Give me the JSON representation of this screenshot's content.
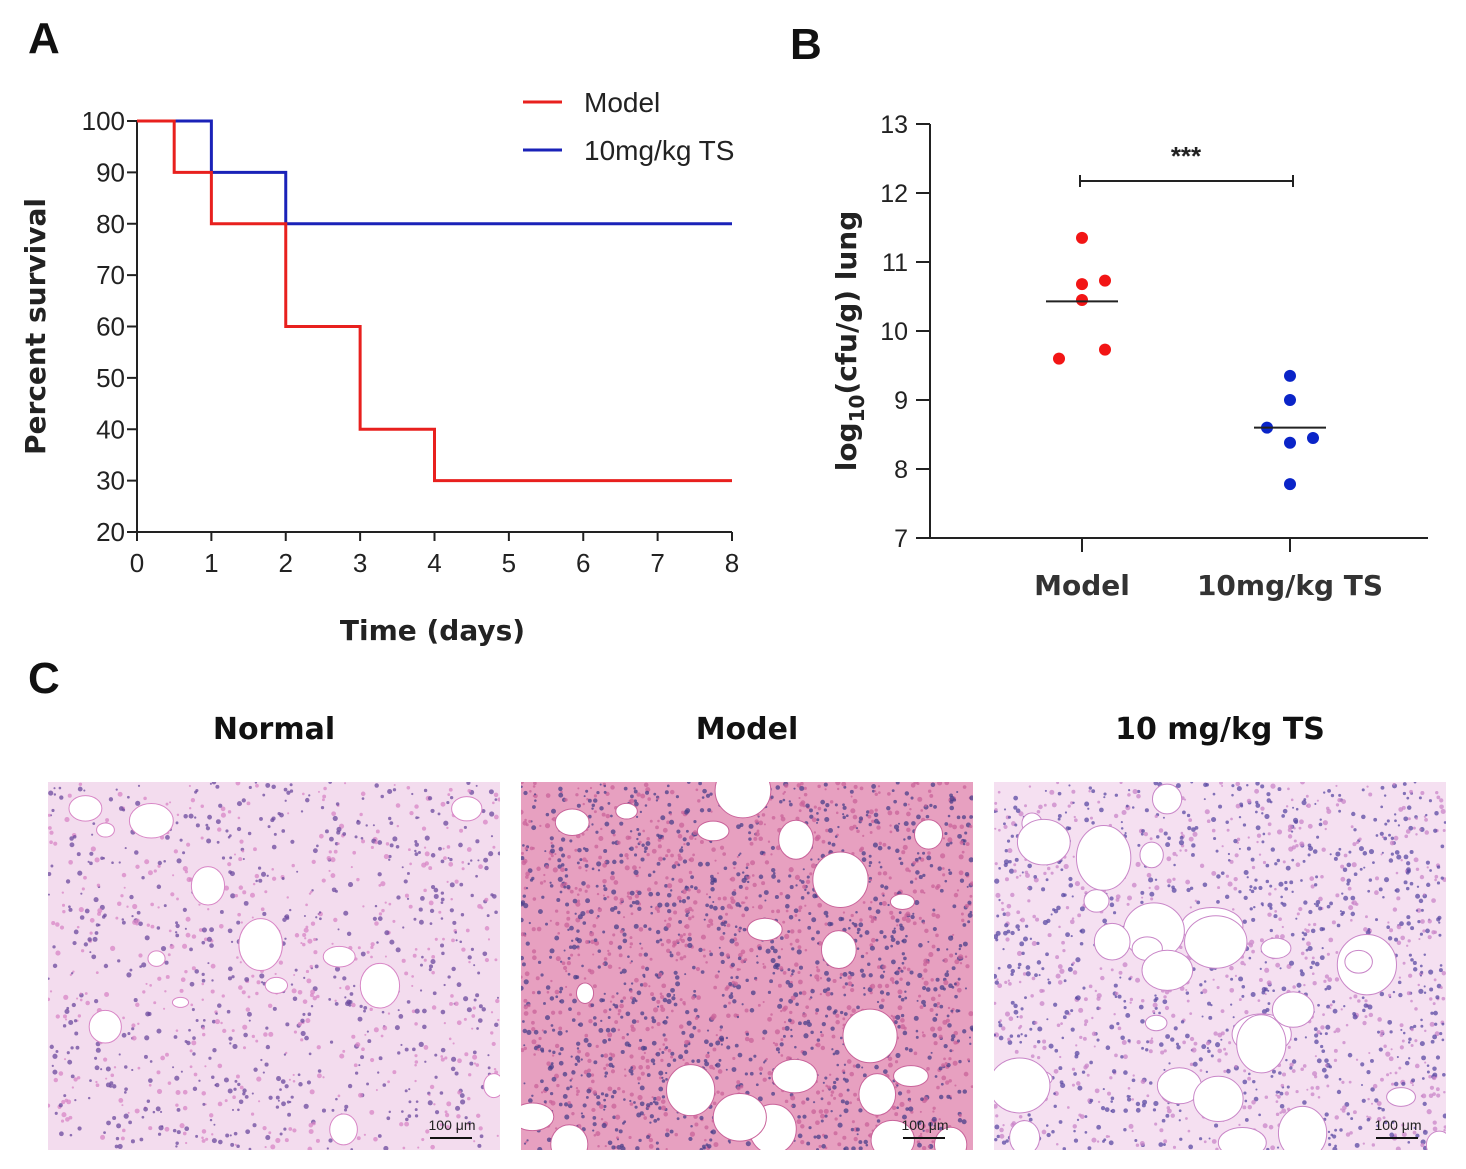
{
  "panels": {
    "a_letter": "A",
    "b_letter": "B",
    "c_letter": "C"
  },
  "chart_data": [
    {
      "type": "line",
      "step": true,
      "xlabel": "Time (days)",
      "ylabel": "Percent survival",
      "xlim": [
        0,
        8
      ],
      "ylim": [
        20,
        100
      ],
      "xticks": [
        0,
        1,
        2,
        3,
        4,
        5,
        6,
        7,
        8
      ],
      "yticks": [
        20,
        30,
        40,
        50,
        60,
        70,
        80,
        90,
        100
      ],
      "legend_position": "top-right",
      "series": [
        {
          "name": "Model",
          "color": "#e8201e",
          "x": [
            0,
            0.5,
            1,
            2,
            3,
            4,
            8
          ],
          "y": [
            100,
            90,
            80,
            60,
            40,
            30,
            30
          ]
        },
        {
          "name": "10mg/kg TS",
          "color": "#1a22b8",
          "x": [
            0,
            1,
            2,
            8
          ],
          "y": [
            100,
            90,
            80,
            80
          ]
        }
      ]
    },
    {
      "type": "scatter",
      "ylabel_main": "log",
      "ylabel_sub": "10",
      "ylabel_rest": "(cfu/g) lung",
      "categories": [
        "Model",
        "10mg/kg TS"
      ],
      "ylim": [
        7,
        13
      ],
      "yticks": [
        7,
        8,
        9,
        10,
        11,
        12,
        13
      ],
      "significance": "***",
      "series": [
        {
          "category": "Model",
          "color": "#f21515",
          "values": [
            11.35,
            10.68,
            10.73,
            10.45,
            9.6,
            9.73
          ],
          "offsets": [
            0,
            0,
            1,
            0,
            -1,
            1
          ],
          "mean": 10.43
        },
        {
          "category": "10mg/kg TS",
          "color": "#0a24c8",
          "values": [
            9.35,
            9.0,
            8.6,
            8.45,
            8.38,
            7.78
          ],
          "offsets": [
            0,
            0,
            -1,
            1,
            0,
            0
          ],
          "mean": 8.6
        }
      ]
    }
  ],
  "histology": [
    {
      "title": "Normal",
      "scale_bar": "100 μm"
    },
    {
      "title": "Model",
      "scale_bar": "100 μm"
    },
    {
      "title": "10 mg/kg TS",
      "scale_bar": "100 μm"
    }
  ]
}
